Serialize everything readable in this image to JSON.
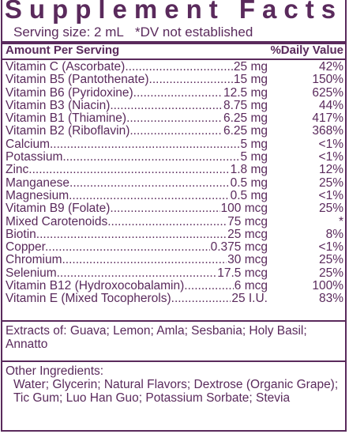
{
  "title": "Supplement Facts",
  "serving": {
    "size": "Serving size: 2 mL",
    "note": "*DV not established"
  },
  "header": {
    "amount_label": "Amount Per Serving",
    "dv_label": "%Daily Value"
  },
  "nutrients": [
    {
      "name": "Vitamin C (Ascorbate)",
      "amount": "25 mg",
      "dv": "42%"
    },
    {
      "name": "Vitamin B5 (Pantothenate)",
      "amount": "15 mg",
      "dv": "150%"
    },
    {
      "name": "Vitamin B6 (Pyridoxine)",
      "amount": "12.5 mg",
      "dv": "625%"
    },
    {
      "name": "Vitamin B3 (Niacin)",
      "amount": "8.75 mg",
      "dv": "44%"
    },
    {
      "name": "Vitamin B1 (Thiamine)",
      "amount": "6.25 mg",
      "dv": "417%"
    },
    {
      "name": "Vitamin B2 (Riboflavin)",
      "amount": "6.25 mg",
      "dv": "368%"
    },
    {
      "name": "Calcium",
      "amount": "5 mg",
      "dv": "<1%"
    },
    {
      "name": "Potassium",
      "amount": "5 mg",
      "dv": "<1%"
    },
    {
      "name": "Zinc",
      "amount": "1.8 mg",
      "dv": "12%"
    },
    {
      "name": "Manganese",
      "amount": "0.5 mg",
      "dv": "25%"
    },
    {
      "name": "Magnesium",
      "amount": "0.5 mg",
      "dv": "<1%"
    },
    {
      "name": "Vitamin B9 (Folate)",
      "amount": "100 mcg",
      "dv": "25%"
    },
    {
      "name": "Mixed Carotenoids",
      "amount": "75 mcg",
      "dv": "*"
    },
    {
      "name": "Biotin",
      "amount": "25 mcg",
      "dv": "8%"
    },
    {
      "name": "Copper",
      "amount": "0.375 mcg",
      "dv": "<1%"
    },
    {
      "name": "Chromium",
      "amount": "30 mcg",
      "dv": "25%"
    },
    {
      "name": "Selenium",
      "amount": "17.5 mcg",
      "dv": "25%"
    },
    {
      "name": "Vitamin B12 (Hydroxocobalamin)",
      "amount": "6 mcg",
      "dv": "100%"
    },
    {
      "name": "Vitamin E (Mixed Tocopherols)",
      "amount": "25 I.U.",
      "dv": "83%"
    }
  ],
  "extracts": "Extracts of: Guava; Lemon; Amla; Sesbania; Holy Basil; Annatto",
  "other": {
    "label": "Other Ingredients:",
    "text": "Water; Glycerin; Natural Flavors; Dextrose (Organic Grape); Tic Gum; Luo Han Guo; Potassium Sorbate; Stevia"
  },
  "colors": {
    "ink": "#5a2a5c",
    "background": "#ffffff"
  }
}
